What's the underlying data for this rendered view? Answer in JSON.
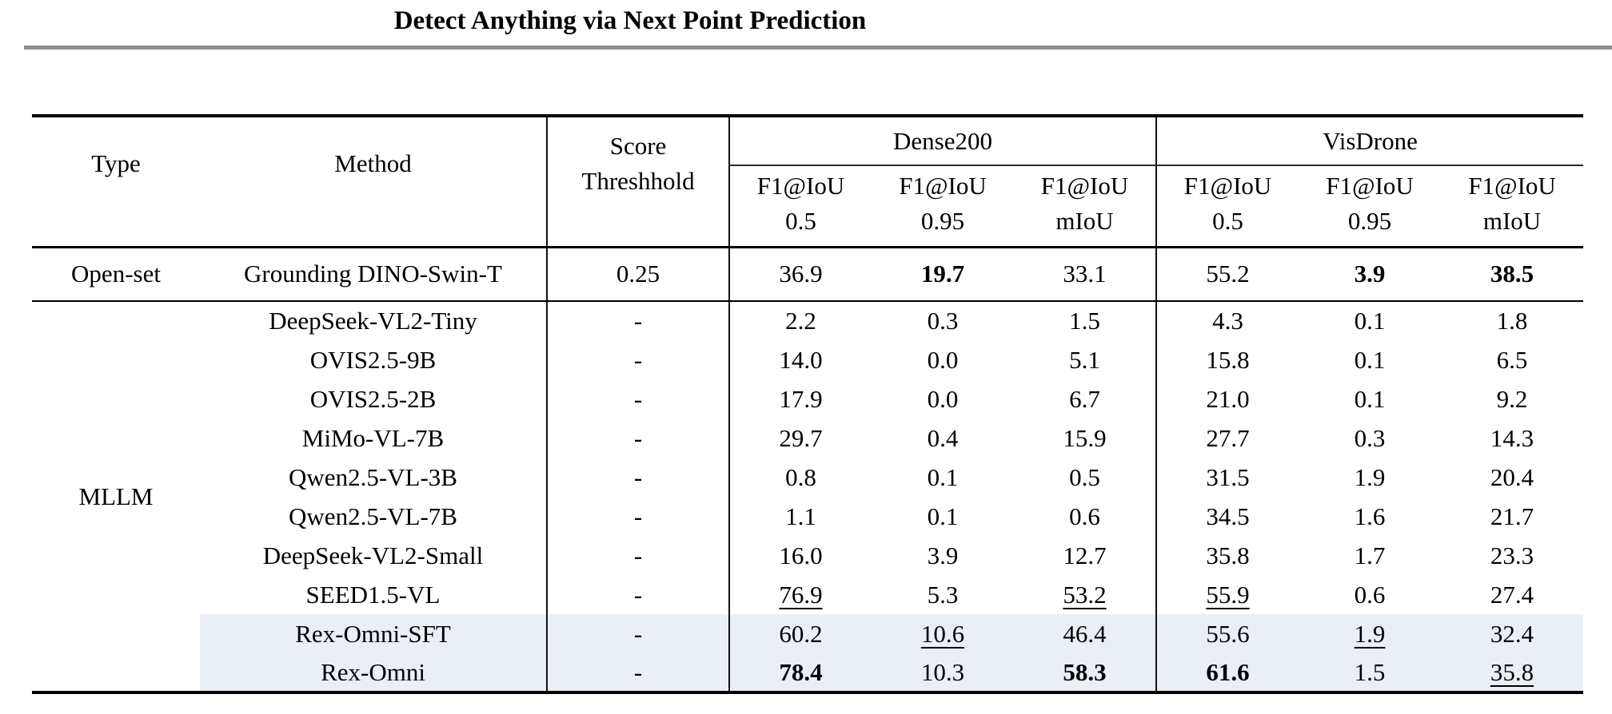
{
  "page_title": "Detect Anything via Next Point Prediction",
  "colors": {
    "highlight_row": "#e9eff5",
    "title_rule": "#8f8f8f"
  },
  "table": {
    "header": {
      "type": "Type",
      "method": "Method",
      "score_line1": "Score",
      "score_line2": "Threshhold",
      "groups": [
        {
          "label": "Dense200"
        },
        {
          "label": "VisDrone"
        }
      ],
      "metric_line1": "F1@IoU",
      "metric_line2s": [
        "0.5",
        "0.95",
        "mIoU",
        "0.5",
        "0.95",
        "mIoU"
      ]
    },
    "rows": [
      {
        "type_label": "Open-set",
        "type_rowspan": 1,
        "method": "Grounding DINO-Swin-T",
        "score": "0.25",
        "values": [
          "36.9",
          "19.7",
          "33.1",
          "55.2",
          "3.9",
          "38.5"
        ],
        "bold": [
          1,
          4,
          5
        ],
        "underline": [],
        "highlight": false,
        "openset": true
      },
      {
        "type_label": "MLLM",
        "type_rowspan": 10,
        "method": "DeepSeek-VL2-Tiny",
        "score": "-",
        "values": [
          "2.2",
          "0.3",
          "1.5",
          "4.3",
          "0.1",
          "1.8"
        ],
        "bold": [],
        "underline": [],
        "highlight": false
      },
      {
        "method": "OVIS2.5-9B",
        "score": "-",
        "values": [
          "14.0",
          "0.0",
          "5.1",
          "15.8",
          "0.1",
          "6.5"
        ],
        "bold": [],
        "underline": [],
        "highlight": false
      },
      {
        "method": "OVIS2.5-2B",
        "score": "-",
        "values": [
          "17.9",
          "0.0",
          "6.7",
          "21.0",
          "0.1",
          "9.2"
        ],
        "bold": [],
        "underline": [],
        "highlight": false
      },
      {
        "method": "MiMo-VL-7B",
        "score": "-",
        "values": [
          "29.7",
          "0.4",
          "15.9",
          "27.7",
          "0.3",
          "14.3"
        ],
        "bold": [],
        "underline": [],
        "highlight": false
      },
      {
        "method": "Qwen2.5-VL-3B",
        "score": "-",
        "values": [
          "0.8",
          "0.1",
          "0.5",
          "31.5",
          "1.9",
          "20.4"
        ],
        "bold": [],
        "underline": [],
        "highlight": false
      },
      {
        "method": "Qwen2.5-VL-7B",
        "score": "-",
        "values": [
          "1.1",
          "0.1",
          "0.6",
          "34.5",
          "1.6",
          "21.7"
        ],
        "bold": [],
        "underline": [],
        "highlight": false
      },
      {
        "method": "DeepSeek-VL2-Small",
        "score": "-",
        "values": [
          "16.0",
          "3.9",
          "12.7",
          "35.8",
          "1.7",
          "23.3"
        ],
        "bold": [],
        "underline": [],
        "highlight": false
      },
      {
        "method": "SEED1.5-VL",
        "score": "-",
        "values": [
          "76.9",
          "5.3",
          "53.2",
          "55.9",
          "0.6",
          "27.4"
        ],
        "bold": [],
        "underline": [
          0,
          2,
          3
        ],
        "highlight": false
      },
      {
        "method": "Rex-Omni-SFT",
        "score": "-",
        "values": [
          "60.2",
          "10.6",
          "46.4",
          "55.6",
          "1.9",
          "32.4"
        ],
        "bold": [],
        "underline": [
          1,
          4
        ],
        "highlight": true
      },
      {
        "method": "Rex-Omni",
        "score": "-",
        "values": [
          "78.4",
          "10.3",
          "58.3",
          "61.6",
          "1.5",
          "35.8"
        ],
        "bold": [
          0,
          2,
          3
        ],
        "underline": [
          5
        ],
        "highlight": true
      }
    ]
  }
}
